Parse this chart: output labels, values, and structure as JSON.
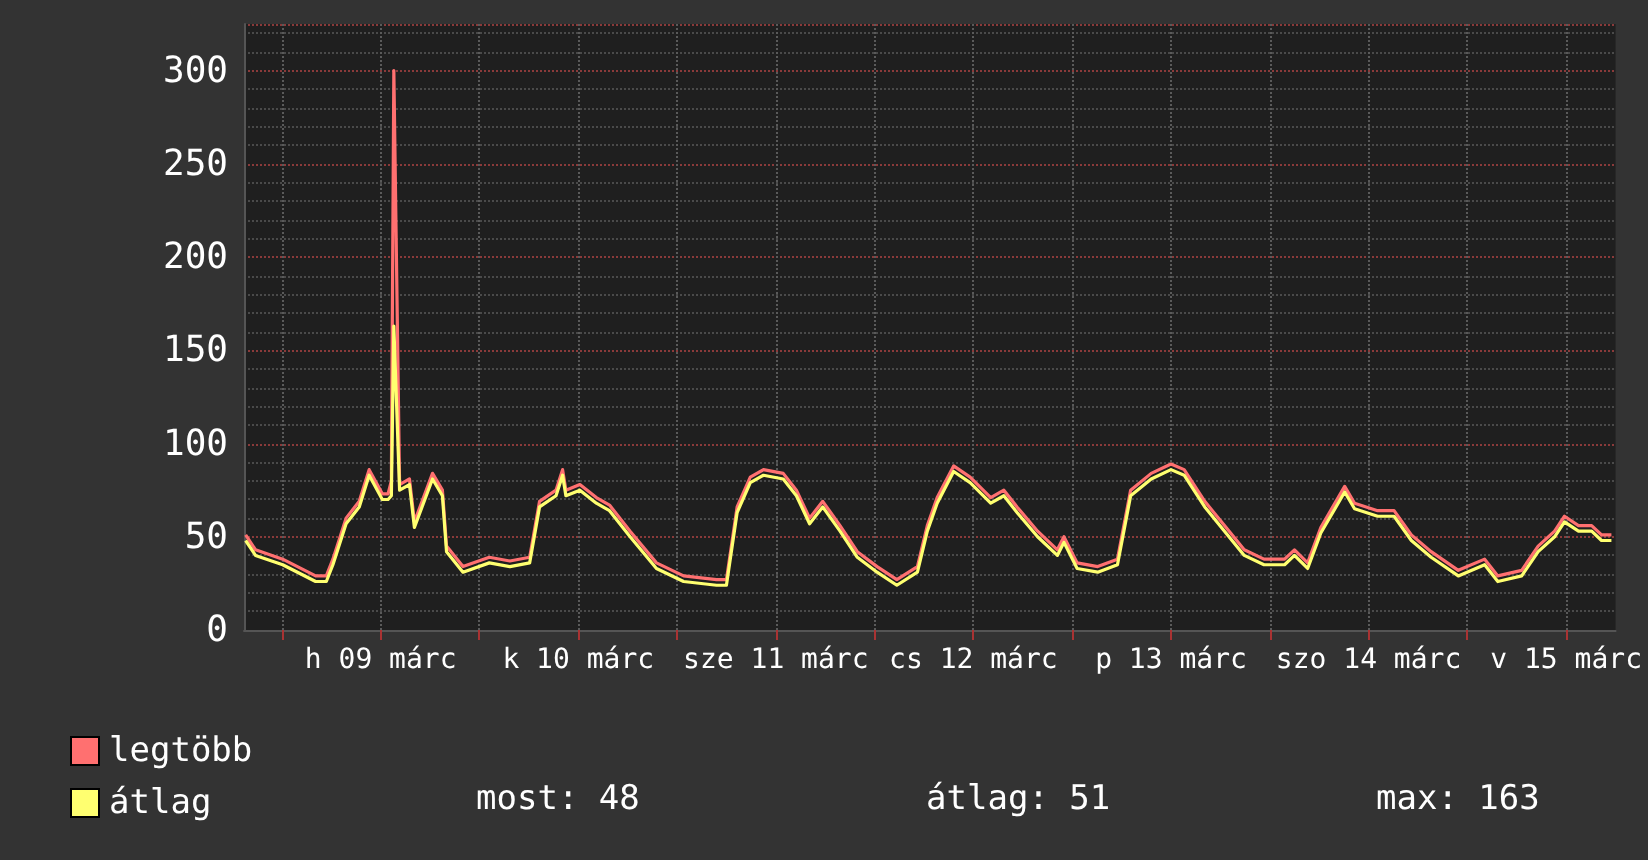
{
  "chart_data": {
    "type": "line",
    "x": [
      "--03-08T19:36",
      "--03-08T20:48",
      "--03-09T00:06",
      "--03-09T04:06",
      "--03-09T05:24",
      "--03-09T06:12",
      "--03-09T07:48",
      "--03-09T09:24",
      "--03-09T10:36",
      "--03-09T12:12",
      "--03-09T12:54",
      "--03-09T13:18",
      "--03-09T13:36",
      "--03-09T14:18",
      "--03-09T15:30",
      "--03-09T16:06",
      "--03-09T18:18",
      "--03-09T19:30",
      "--03-09T20:00",
      "--03-09T22:00",
      "--03-10T01:12",
      "--03-10T03:42",
      "--03-10T06:06",
      "--03-10T07:18",
      "--03-10T09:18",
      "--03-10T10:06",
      "--03-10T10:30",
      "--03-10T12:12",
      "--03-10T14:12",
      "--03-10T15:48",
      "--03-10T18:18",
      "--03-10T21:30",
      "--03-11T00:48",
      "--03-11T04:48",
      "--03-11T06:00",
      "--03-11T07:18",
      "--03-11T08:54",
      "--03-11T10:30",
      "--03-11T12:54",
      "--03-11T14:30",
      "--03-11T16:06",
      "--03-11T17:42",
      "--03-11T19:48",
      "--03-11T21:54",
      "--03-12T00:18",
      "--03-12T02:42",
      "--03-12T05:12",
      "--03-12T06:24",
      "--03-12T07:36",
      "--03-12T09:36",
      "--03-12T11:36",
      "--03-12T14:06",
      "--03-12T15:42",
      "--03-12T17:18",
      "--03-12T19:48",
      "--03-12T22:12",
      "--03-12T23:00",
      "--03-13T00:36",
      "--03-13T03:06",
      "--03-13T05:30",
      "--03-13T07:06",
      "--03-13T09:36",
      "--03-13T12:00",
      "--03-13T13:36",
      "--03-13T16:06",
      "--03-13T18:30",
      "--03-13T20:54",
      "--03-13T23:18",
      "--03-14T01:48",
      "--03-14T03:00",
      "--03-14T04:36",
      "--03-14T06:12",
      "--03-14T09:06",
      "--03-14T10:18",
      "--03-14T13:06",
      "--03-14T15:06",
      "--03-14T17:12",
      "--03-14T19:36",
      "--03-14T22:54",
      "--03-15T02:06",
      "--03-15T03:42",
      "--03-15T06:36",
      "--03-15T08:36",
      "--03-15T10:36",
      "--03-15T11:48",
      "--03-15T13:30",
      "--03-15T15:06",
      "--03-15T16:18",
      "--03-15T17:30"
    ],
    "series": [
      {
        "name": "legtöbb",
        "color": "#ff7070",
        "values": [
          51,
          43,
          38,
          29,
          29,
          38,
          60,
          69,
          86,
          73,
          73,
          80,
          300,
          78,
          81,
          58,
          84,
          75,
          45,
          34,
          39,
          37,
          39,
          69,
          75,
          86,
          75,
          78,
          71,
          67,
          53,
          36,
          29,
          27,
          27,
          66,
          82,
          86,
          84,
          75,
          60,
          69,
          56,
          42,
          34,
          27,
          34,
          56,
          71,
          88,
          82,
          71,
          75,
          66,
          53,
          43,
          50,
          36,
          34,
          38,
          75,
          84,
          89,
          86,
          69,
          56,
          43,
          38,
          38,
          43,
          36,
          55,
          77,
          68,
          64,
          64,
          51,
          42,
          32,
          38,
          29,
          32,
          45,
          53,
          61,
          56,
          56,
          51,
          51
        ]
      },
      {
        "name": "átlag",
        "color": "#ffff70",
        "values": [
          48,
          40,
          35,
          26,
          26,
          35,
          57,
          66,
          83,
          70,
          70,
          72,
          163,
          75,
          78,
          55,
          81,
          72,
          42,
          31,
          36,
          34,
          36,
          66,
          72,
          83,
          72,
          75,
          68,
          64,
          50,
          33,
          26,
          24,
          24,
          63,
          79,
          83,
          81,
          72,
          57,
          66,
          53,
          39,
          31,
          24,
          31,
          53,
          68,
          85,
          79,
          68,
          72,
          63,
          50,
          40,
          47,
          33,
          31,
          35,
          72,
          81,
          86,
          83,
          66,
          53,
          40,
          35,
          35,
          40,
          33,
          52,
          74,
          65,
          61,
          61,
          48,
          39,
          29,
          35,
          26,
          29,
          42,
          50,
          58,
          53,
          53,
          48,
          48
        ]
      }
    ],
    "xlim": [
      "--03-08T19:24",
      "--03-15T18:00"
    ],
    "xticks": [
      {
        "value": "--03-09T00:00",
        "label": null
      },
      {
        "value": "--03-09T12:00",
        "label": "h 09 márc"
      },
      {
        "value": "--03-10T00:00",
        "label": null
      },
      {
        "value": "--03-10T12:00",
        "label": "k 10 márc"
      },
      {
        "value": "--03-11T00:00",
        "label": null
      },
      {
        "value": "--03-11T12:00",
        "label": "sze 11 márc"
      },
      {
        "value": "--03-12T00:00",
        "label": null
      },
      {
        "value": "--03-12T12:00",
        "label": "cs 12 márc"
      },
      {
        "value": "--03-13T00:00",
        "label": null
      },
      {
        "value": "--03-13T12:00",
        "label": "p 13 márc"
      },
      {
        "value": "--03-14T00:00",
        "label": null
      },
      {
        "value": "--03-14T12:00",
        "label": "szo 14 márc"
      },
      {
        "value": "--03-15T00:00",
        "label": null
      },
      {
        "value": "--03-15T12:00",
        "label": "v 15 márc"
      }
    ],
    "ylim": [
      0,
      325
    ],
    "yticks": [
      0,
      50,
      100,
      150,
      200,
      250,
      300
    ],
    "grid": true,
    "legend": "bottom left",
    "marker": "none",
    "line_style": "solid",
    "annotations": [
      "most: 48",
      "átlag: 51",
      "max: 163"
    ]
  }
}
